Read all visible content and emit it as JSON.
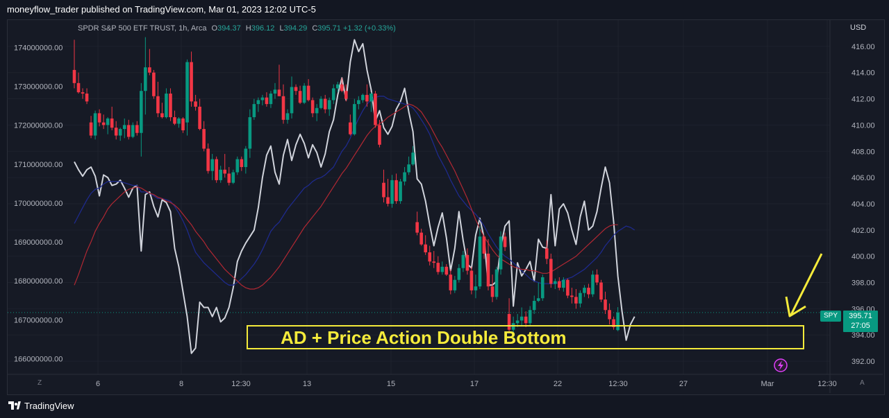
{
  "header": {
    "publisher": "moneyflow_trader published on TradingView.com, Mar 01, 2023 12:02 UTC-5"
  },
  "legend": {
    "symbol": "SPDR S&P 500 ETF TRUST, 1h, Arca",
    "o_label": "O",
    "o": "394.37",
    "h_label": "H",
    "h": "396.12",
    "l_label": "L",
    "l": "394.29",
    "c_label": "C",
    "c": "395.71",
    "change": "+1.32 (+0.33%)"
  },
  "right_axis": {
    "currency": "USD",
    "symbol_tag": "SPY",
    "last_price": "395.71",
    "countdown": "27:05"
  },
  "annotation": {
    "text": "AD + Price Action Double Bottom"
  },
  "bottom": {
    "left_button": "Z",
    "right_button": "A",
    "brand": "TradingView"
  },
  "colors": {
    "up": "#089981",
    "down": "#f23645",
    "ad_line": "#d1d4dc",
    "ma_fast": "#b22833",
    "ma_slow": "#1e2a8c",
    "highlight": "#f5eb3b",
    "background": "#161a25"
  },
  "chart_data": {
    "type": "candlestick",
    "title": "SPDR S&P 500 ETF TRUST, 1h, Arca",
    "x_tick_labels": [
      "6",
      "8",
      "12:30",
      "13",
      "15",
      "17",
      "22",
      "12:30",
      "27",
      "Mar",
      "12:30"
    ],
    "right_axis": {
      "label": "USD",
      "ticks": [
        392,
        394,
        396,
        398,
        400,
        402,
        404,
        406,
        408,
        410,
        412,
        414,
        416
      ],
      "ylim": [
        391,
        418
      ]
    },
    "left_axis": {
      "ticks": [
        166000000,
        167000000,
        168000000,
        169000000,
        170000000,
        171000000,
        172000000,
        173000000,
        174000000
      ],
      "ylim": [
        165600000,
        174700000
      ]
    },
    "last_close": 395.71,
    "candles": [
      [
        414.2,
        416.5,
        412.8,
        413.2
      ],
      [
        413.2,
        414.0,
        412.4,
        412.5
      ],
      [
        412.5,
        412.8,
        412.0,
        412.4
      ],
      [
        412.4,
        412.8,
        411.6,
        411.8
      ],
      [
        410.2,
        410.7,
        409.0,
        409.2
      ],
      [
        409.2,
        411.1,
        408.9,
        410.9
      ],
      [
        410.9,
        411.2,
        409.9,
        410.2
      ],
      [
        410.2,
        410.8,
        409.7,
        410.0
      ],
      [
        410.0,
        410.6,
        409.3,
        410.5
      ],
      [
        410.5,
        411.4,
        409.6,
        409.8
      ],
      [
        409.8,
        410.3,
        408.9,
        409.2
      ],
      [
        409.2,
        409.8,
        408.8,
        409.7
      ],
      [
        409.7,
        410.5,
        409.0,
        410.0
      ],
      [
        410.0,
        410.4,
        408.9,
        409.1
      ],
      [
        409.1,
        410.2,
        409.0,
        410.0
      ],
      [
        410.0,
        410.3,
        409.2,
        409.4
      ],
      [
        409.4,
        413.2,
        407.6,
        412.6
      ],
      [
        412.6,
        416.7,
        410.8,
        414.4
      ],
      [
        414.4,
        415.8,
        413.8,
        414.0
      ],
      [
        414.0,
        414.2,
        412.0,
        412.2
      ],
      [
        412.2,
        413.3,
        410.6,
        410.9
      ],
      [
        410.9,
        411.7,
        410.5,
        410.6
      ],
      [
        410.6,
        412.8,
        410.5,
        412.4
      ],
      [
        412.4,
        412.8,
        410.3,
        410.6
      ],
      [
        410.6,
        411.1,
        410.0,
        410.1
      ],
      [
        410.1,
        410.6,
        409.8,
        410.5
      ],
      [
        410.5,
        410.6,
        409.4,
        409.6
      ],
      [
        410.2,
        415.0,
        409.2,
        414.8
      ],
      [
        414.8,
        415.6,
        411.4,
        411.8
      ],
      [
        411.8,
        412.3,
        411.1,
        411.4
      ],
      [
        411.4,
        412.0,
        409.6,
        409.7
      ],
      [
        409.7,
        410.3,
        408.0,
        408.2
      ],
      [
        408.2,
        408.6,
        406.3,
        406.5
      ],
      [
        406.5,
        407.8,
        405.8,
        407.4
      ],
      [
        407.4,
        407.6,
        405.6,
        405.8
      ],
      [
        405.8,
        406.9,
        405.6,
        406.6
      ],
      [
        406.6,
        407.8,
        406.0,
        406.3
      ],
      [
        406.3,
        406.8,
        405.4,
        405.6
      ],
      [
        405.6,
        406.6,
        405.5,
        406.4
      ],
      [
        406.4,
        407.6,
        406.2,
        407.4
      ],
      [
        407.4,
        407.6,
        406.5,
        406.8
      ],
      [
        406.8,
        408.4,
        406.3,
        408.2
      ],
      [
        408.2,
        411.2,
        407.5,
        410.6
      ],
      [
        410.6,
        412.0,
        410.4,
        411.6
      ],
      [
        411.6,
        412.1,
        411.0,
        411.9
      ],
      [
        411.9,
        412.3,
        411.5,
        412.1
      ],
      [
        412.1,
        412.5,
        411.4,
        411.6
      ],
      [
        411.6,
        412.6,
        411.3,
        412.4
      ],
      [
        412.4,
        413.2,
        412.0,
        412.7
      ],
      [
        412.7,
        414.6,
        412.2,
        412.2
      ],
      [
        412.2,
        413.1,
        410.1,
        410.4
      ],
      [
        410.4,
        411.2,
        410.1,
        410.9
      ],
      [
        410.9,
        413.7,
        410.5,
        412.9
      ],
      [
        412.9,
        413.1,
        412.3,
        412.6
      ],
      [
        412.6,
        413.0,
        411.6,
        411.7
      ],
      [
        411.7,
        413.2,
        411.6,
        413.0
      ],
      [
        413.0,
        413.5,
        411.8,
        411.9
      ],
      [
        411.9,
        412.1,
        410.6,
        410.9
      ],
      [
        410.9,
        411.6,
        410.3,
        411.3
      ],
      [
        411.3,
        412.2,
        411.2,
        412.0
      ],
      [
        412.0,
        412.3,
        410.9,
        411.2
      ],
      [
        411.2,
        412.1,
        410.7,
        411.9
      ],
      [
        411.9,
        413.1,
        411.6,
        412.8
      ],
      [
        412.8,
        413.3,
        412.5,
        413.1
      ],
      [
        413.1,
        413.6,
        412.5,
        412.6
      ],
      [
        412.6,
        413.1,
        411.8,
        412.0
      ],
      [
        410.2,
        410.8,
        409.2,
        409.3
      ],
      [
        409.3,
        412.0,
        409.2,
        411.6
      ],
      [
        411.6,
        412.2,
        411.2,
        411.9
      ],
      [
        411.9,
        412.4,
        411.7,
        412.3
      ],
      [
        412.3,
        413.1,
        411.4,
        411.8
      ],
      [
        411.8,
        412.5,
        411.0,
        412.4
      ],
      [
        412.4,
        412.6,
        409.8,
        410.0
      ],
      [
        410.0,
        410.4,
        408.3,
        408.5
      ],
      [
        405.6,
        406.6,
        404.1,
        404.5
      ],
      [
        404.5,
        405.9,
        403.8,
        404.0
      ],
      [
        404.0,
        406.2,
        403.7,
        405.8
      ],
      [
        405.8,
        406.3,
        404.0,
        404.2
      ],
      [
        404.2,
        405.9,
        404.0,
        405.7
      ],
      [
        405.7,
        406.8,
        405.4,
        406.4
      ],
      [
        406.4,
        407.6,
        406.2,
        407.0
      ],
      [
        407.0,
        408.4,
        406.9,
        407.9
      ],
      [
        402.6,
        403.4,
        401.6,
        401.8
      ],
      [
        401.8,
        402.1,
        400.8,
        400.9
      ],
      [
        400.9,
        401.6,
        400.1,
        400.3
      ],
      [
        400.3,
        400.8,
        399.3,
        399.6
      ],
      [
        399.6,
        400.4,
        399.1,
        399.5
      ],
      [
        399.5,
        400.0,
        398.6,
        398.8
      ],
      [
        398.8,
        399.6,
        398.6,
        399.2
      ],
      [
        399.2,
        399.4,
        398.5,
        398.6
      ],
      [
        398.6,
        399.0,
        397.1,
        397.4
      ],
      [
        397.4,
        398.5,
        397.2,
        398.2
      ],
      [
        398.2,
        399.4,
        398.0,
        399.1
      ],
      [
        399.1,
        400.4,
        398.8,
        400.1
      ],
      [
        400.1,
        400.6,
        398.6,
        398.9
      ],
      [
        398.9,
        399.2,
        397.1,
        397.4
      ],
      [
        397.4,
        398.6,
        396.8,
        397.7
      ],
      [
        397.7,
        402.3,
        397.5,
        401.5
      ],
      [
        401.5,
        401.6,
        399.8,
        400.2
      ],
      [
        400.2,
        401.3,
        397.4,
        397.7
      ],
      [
        397.7,
        398.6,
        396.5,
        396.9
      ],
      [
        396.9,
        399.2,
        396.7,
        399.0
      ],
      [
        399.0,
        401.9,
        398.6,
        401.5
      ],
      [
        401.5,
        401.8,
        400.4,
        400.7
      ],
      [
        395.6,
        396.8,
        394.2,
        394.4
      ],
      [
        394.4,
        395.4,
        393.6,
        394.9
      ],
      [
        394.9,
        395.6,
        394.6,
        395.1
      ],
      [
        395.1,
        396.1,
        394.7,
        395.4
      ],
      [
        395.4,
        395.8,
        394.6,
        394.9
      ],
      [
        394.9,
        396.2,
        394.7,
        395.9
      ],
      [
        395.9,
        397.0,
        395.6,
        396.6
      ],
      [
        396.6,
        398.0,
        396.5,
        396.8
      ],
      [
        396.8,
        398.6,
        396.6,
        398.4
      ],
      [
        400.6,
        401.2,
        399.4,
        399.8
      ],
      [
        399.8,
        400.2,
        397.6,
        397.9
      ],
      [
        397.9,
        398.3,
        397.5,
        398.1
      ],
      [
        398.1,
        398.4,
        397.4,
        397.6
      ],
      [
        397.6,
        398.4,
        397.3,
        398.2
      ],
      [
        398.2,
        398.3,
        396.8,
        397.0
      ],
      [
        397.0,
        397.6,
        396.4,
        396.9
      ],
      [
        396.9,
        397.5,
        396.0,
        396.4
      ],
      [
        396.4,
        397.4,
        396.1,
        397.2
      ],
      [
        397.2,
        397.8,
        396.9,
        397.6
      ],
      [
        397.6,
        397.9,
        396.8,
        397.1
      ],
      [
        397.1,
        398.9,
        396.9,
        398.6
      ],
      [
        398.6,
        399.0,
        397.8,
        398.0
      ],
      [
        398.0,
        398.2,
        396.5,
        396.7
      ],
      [
        396.7,
        397.3,
        395.6,
        395.9
      ],
      [
        395.9,
        396.4,
        394.8,
        395.2
      ],
      [
        395.2,
        395.4,
        394.4,
        394.6
      ],
      [
        394.37,
        396.12,
        394.29,
        395.71
      ]
    ],
    "series": [
      {
        "values": [
          407.2,
          406.6,
          406.1,
          406.6,
          406.8,
          406.1,
          404.6,
          406.2,
          406.0,
          405.4,
          405.5,
          405.8,
          405.2,
          404.5,
          405.2,
          405.4,
          400.4,
          404.7,
          404.9,
          403.8,
          403.0,
          404.3,
          404.1,
          403.4,
          400.6,
          399.2,
          397.3,
          395.4,
          392.6,
          393.0,
          396.5,
          396.1,
          396.1,
          395.4,
          396.1,
          395.0,
          395.3,
          396.1,
          397.6,
          399.6,
          400.4,
          401.0,
          401.5,
          402.0,
          403.7,
          406.0,
          407.7,
          408.4,
          406.4,
          405.5,
          407.7,
          408.9,
          407.3,
          408.5,
          409.3,
          408.6,
          407.5,
          408.5,
          407.9,
          406.8,
          407.8,
          409.5,
          410.4,
          412.3,
          413.6,
          411.9,
          414.8,
          416.5,
          415.6,
          416.2,
          414.2,
          412.7,
          410.3,
          411.1,
          409.8,
          409.3,
          409.9,
          411.2,
          411.8,
          412.8,
          411.0,
          409.5,
          405.9,
          405.5,
          404.2,
          402.4,
          400.8,
          402.2,
          403.3,
          401.4,
          398.9,
          400.6,
          403.4,
          401.2,
          399.4,
          399.1,
          401.6,
          402.9,
          401.4,
          397.8,
          397.8,
          398.1,
          400.7,
          402.3,
          402.7,
          396.2,
          399.5,
          398.5,
          399.0,
          399.6,
          398.1,
          401.3,
          400.7,
          400.6,
          404.7,
          400.8,
          403.6,
          404.0,
          403.3,
          402.0,
          400.9,
          403.0,
          404.2,
          402.0,
          402.3,
          403.4,
          405.2,
          406.8,
          405.6,
          402.6,
          398.5,
          395.8,
          393.6,
          394.8,
          395.4
        ]
      },
      {
        "values": [
          402.5,
          403.1,
          403.7,
          404.3,
          404.8,
          405.1,
          405.2,
          405.5,
          405.7,
          405.7,
          405.7,
          405.7,
          405.6,
          405.5,
          405.4,
          405.4,
          404.9,
          404.9,
          404.8,
          404.6,
          404.4,
          404.4,
          404.3,
          404.2,
          403.8,
          403.3,
          402.7,
          402.0,
          401.1,
          400.3,
          399.9,
          399.5,
          399.2,
          398.9,
          398.6,
          398.3,
          398.0,
          397.8,
          397.8,
          398.0,
          398.3,
          398.6,
          399.0,
          399.4,
          399.9,
          400.5,
          401.2,
          401.9,
          402.3,
          402.6,
          403.1,
          403.6,
          404.0,
          404.4,
          404.8,
          405.2,
          405.4,
          405.7,
          405.9,
          406.0,
          406.2,
          406.5,
          406.8,
          407.4,
          408.0,
          408.4,
          409.0,
          409.8,
          410.5,
          411.1,
          411.6,
          411.9,
          412.1,
          412.2,
          412.2,
          412.0,
          411.9,
          411.8,
          411.7,
          411.6,
          411.5,
          411.3,
          410.9,
          410.4,
          409.9,
          409.3,
          408.5,
          407.7,
          407.1,
          406.5,
          405.8,
          405.2,
          404.6,
          404.2,
          403.8,
          403.5,
          403.2,
          402.8,
          402.3,
          401.7,
          401.2,
          400.7,
          400.3,
          400.0,
          399.8,
          399.5,
          399.2,
          398.9,
          398.6,
          398.3,
          398.1,
          398.0,
          397.9,
          397.9,
          397.9,
          397.9,
          398.0,
          398.2,
          398.3,
          398.4,
          398.6,
          398.8,
          399.0,
          399.3,
          399.6,
          399.9,
          400.3,
          400.8,
          401.2,
          401.6,
          401.9,
          402.1,
          402.3,
          402.2,
          402.0
        ]
      },
      {
        "values": [
          397.8,
          398.6,
          399.5,
          400.4,
          401.1,
          401.9,
          402.5,
          403.0,
          403.6,
          404.0,
          404.3,
          404.6,
          404.9,
          405.1,
          405.2,
          405.3,
          405.2,
          405.0,
          404.8,
          404.7,
          404.5,
          404.4,
          404.2,
          404.1,
          403.9,
          403.6,
          403.2,
          402.8,
          402.4,
          401.9,
          401.5,
          401.1,
          400.6,
          400.2,
          399.8,
          399.4,
          399.0,
          398.7,
          398.4,
          398.1,
          397.8,
          397.6,
          397.5,
          397.5,
          397.6,
          397.8,
          398.1,
          398.4,
          398.8,
          399.2,
          399.7,
          400.2,
          400.7,
          401.2,
          401.7,
          402.2,
          402.6,
          403.0,
          403.4,
          403.8,
          404.3,
          404.8,
          405.3,
          405.8,
          406.3,
          406.7,
          407.2,
          407.7,
          408.2,
          408.7,
          409.2,
          409.6,
          409.9,
          410.1,
          410.3,
          410.6,
          410.8,
          411.0,
          411.2,
          411.4,
          411.6,
          411.5,
          411.3,
          411.0,
          410.5,
          410.0,
          409.4,
          408.8,
          408.3,
          407.7,
          407.1,
          406.5,
          405.8,
          405.1,
          404.4,
          403.6,
          402.8,
          402.1,
          401.5,
          401.0,
          400.5,
          400.1,
          399.8,
          399.6,
          399.4,
          399.2,
          399.1,
          399.0,
          399.0,
          398.9,
          398.9,
          398.8,
          398.7,
          398.7,
          398.8,
          399.0,
          399.2,
          399.4,
          399.6,
          399.8,
          400.0,
          400.3,
          400.6,
          400.9,
          401.2,
          401.5,
          401.8,
          402.1,
          402.3,
          402.4,
          402.4
        ]
      }
    ]
  }
}
